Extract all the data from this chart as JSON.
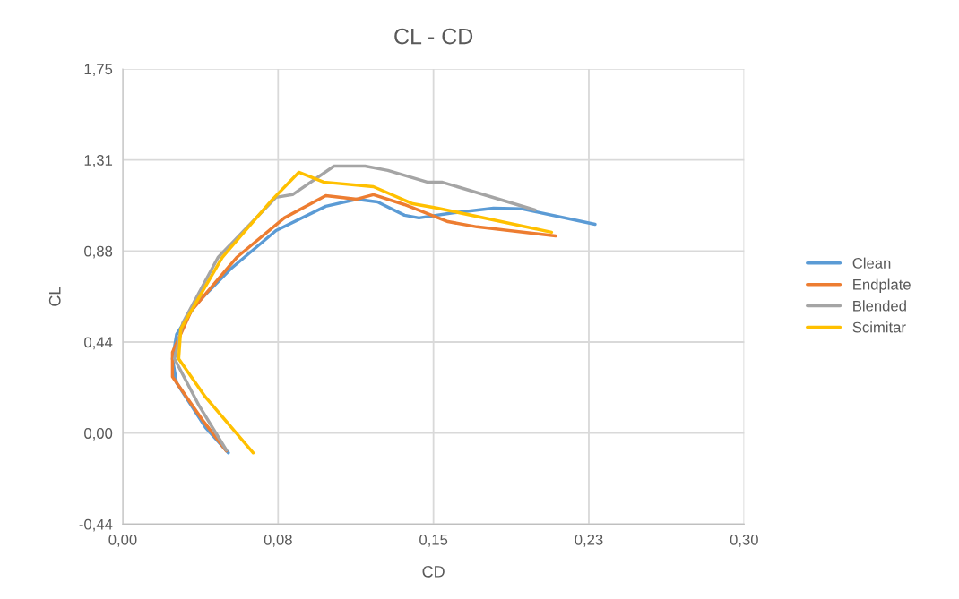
{
  "chart_data": {
    "type": "line",
    "title": "CL - CD",
    "xlabel": "CD",
    "ylabel": "CL",
    "xlim": [
      0,
      0.3
    ],
    "xticks": [
      {
        "value": 0,
        "label": "0,00"
      },
      {
        "value": 0.075,
        "label": "0,08"
      },
      {
        "value": 0.15,
        "label": "0,15"
      },
      {
        "value": 0.225,
        "label": "0,23"
      },
      {
        "value": 0.3,
        "label": "0,30"
      }
    ],
    "ylim": [
      -0.4375,
      1.75
    ],
    "yticks": [
      {
        "value": -0.4375,
        "label": "-0,44"
      },
      {
        "value": 0,
        "label": "0,00"
      },
      {
        "value": 0.4375,
        "label": "0,44"
      },
      {
        "value": 0.875,
        "label": "0,88"
      },
      {
        "value": 1.3125,
        "label": "1,31"
      },
      {
        "value": 1.75,
        "label": "1,75"
      }
    ],
    "grid": true,
    "legend": "right",
    "marker": "none",
    "line_style": "solid",
    "series": [
      {
        "name": "Clean",
        "color": "#5b9bd5",
        "x": [
          0.051,
          0.04,
          0.026,
          0.024,
          0.026,
          0.035,
          0.052,
          0.074,
          0.098,
          0.113,
          0.123,
          0.136,
          0.143,
          0.16,
          0.179,
          0.193,
          0.228
        ],
        "values": [
          -0.095,
          0.026,
          0.241,
          0.357,
          0.474,
          0.616,
          0.788,
          0.973,
          1.09,
          1.124,
          1.111,
          1.047,
          1.034,
          1.059,
          1.081,
          1.077,
          1.003
        ]
      },
      {
        "name": "Endplate",
        "color": "#ed7d31",
        "x": [
          0.05,
          0.039,
          0.024,
          0.024,
          0.033,
          0.055,
          0.078,
          0.098,
          0.113,
          0.121,
          0.136,
          0.157,
          0.171,
          0.209
        ],
        "values": [
          -0.086,
          0.056,
          0.271,
          0.388,
          0.586,
          0.844,
          1.034,
          1.141,
          1.124,
          1.146,
          1.098,
          1.016,
          0.991,
          0.947
        ]
      },
      {
        "name": "Blended",
        "color": "#a5a5a5",
        "x": [
          0.05,
          0.037,
          0.025,
          0.029,
          0.046,
          0.074,
          0.082,
          0.102,
          0.117,
          0.128,
          0.147,
          0.154,
          0.199
        ],
        "values": [
          -0.082,
          0.129,
          0.357,
          0.53,
          0.844,
          1.133,
          1.146,
          1.283,
          1.283,
          1.262,
          1.206,
          1.206,
          1.072
        ]
      },
      {
        "name": "Scimitar",
        "color": "#ffc000",
        "x": [
          0.063,
          0.04,
          0.027,
          0.028,
          0.048,
          0.072,
          0.085,
          0.097,
          0.121,
          0.14,
          0.152,
          0.207
        ],
        "values": [
          -0.095,
          0.172,
          0.357,
          0.5,
          0.844,
          1.12,
          1.253,
          1.206,
          1.184,
          1.102,
          1.081,
          0.965
        ]
      }
    ]
  }
}
